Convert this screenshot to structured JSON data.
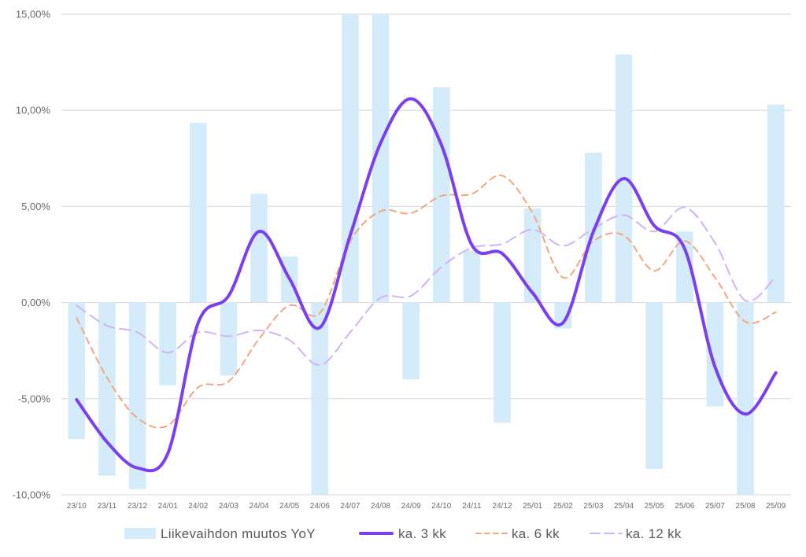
{
  "chart_data": {
    "type": "bar",
    "title": "",
    "xlabel": "",
    "ylabel": "",
    "ylim": [
      -10,
      15
    ],
    "yticks": [
      15,
      10,
      5,
      0,
      -5,
      -10
    ],
    "ytick_labels": [
      "15,00%",
      "10,00%",
      "5,00%",
      "0,00%",
      "-5,00%",
      "-10,00%"
    ],
    "grid": true,
    "legend_position": "bottom",
    "categories": [
      "23/10",
      "23/11",
      "23/12",
      "24/01",
      "24/02",
      "24/03",
      "24/04",
      "24/05",
      "24/06",
      "24/07",
      "24/08",
      "24/09",
      "24/10",
      "24/11",
      "24/12",
      "25/01",
      "25/02",
      "25/03",
      "25/04",
      "25/05",
      "25/06",
      "25/07",
      "25/08",
      "25/09"
    ],
    "series": [
      {
        "name": "Liikevaihdon muutos YoY",
        "type": "bar",
        "color": "#d4ebfa",
        "values": [
          -7.1,
          -9.0,
          -9.7,
          -4.3,
          9.35,
          -3.8,
          5.65,
          2.4,
          -10.0,
          15.0,
          15.0,
          -4.0,
          11.2,
          2.7,
          -6.25,
          4.9,
          -1.35,
          7.8,
          12.9,
          -8.65,
          3.7,
          -5.4,
          -10.0,
          10.3
        ]
      },
      {
        "name": "ka. 3 kk",
        "type": "line",
        "style": "solid",
        "color": "#7b3ff2",
        "values": [
          -5.05,
          -7.25,
          -8.6,
          -7.85,
          -1.05,
          0.35,
          3.7,
          1.25,
          -1.3,
          3.5,
          8.3,
          10.6,
          8.2,
          3.0,
          2.55,
          0.5,
          -1.05,
          3.7,
          6.45,
          4.0,
          2.8,
          -3.35,
          -5.8,
          -3.65
        ]
      },
      {
        "name": "ka. 6 kk",
        "type": "line",
        "style": "dashed",
        "color": "#f4a77e",
        "values": [
          -0.8,
          -3.9,
          -6.0,
          -6.4,
          -4.4,
          -4.1,
          -1.9,
          -0.15,
          -0.55,
          3.2,
          4.75,
          4.65,
          5.55,
          5.65,
          6.6,
          4.65,
          1.3,
          3.2,
          3.5,
          1.65,
          3.2,
          1.3,
          -1.0,
          -0.5
        ]
      },
      {
        "name": "ka. 12 kk",
        "type": "line",
        "style": "dashed",
        "color": "#d1b4f6",
        "values": [
          -0.15,
          -1.2,
          -1.55,
          -2.6,
          -1.55,
          -1.75,
          -1.45,
          -1.95,
          -3.25,
          -1.55,
          0.25,
          0.35,
          1.85,
          2.85,
          3.05,
          3.8,
          2.95,
          3.85,
          4.55,
          3.7,
          4.95,
          3.1,
          0.1,
          1.35
        ]
      }
    ]
  }
}
